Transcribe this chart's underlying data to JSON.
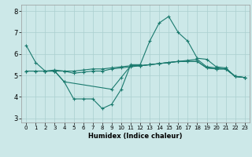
{
  "bg_color": "#cce8e8",
  "grid_color": "#aacfcf",
  "line_color": "#1a7a6e",
  "xlabel": "Humidex (Indice chaleur)",
  "xlim": [
    -0.5,
    23.5
  ],
  "ylim": [
    2.8,
    8.3
  ],
  "yticks": [
    3,
    4,
    5,
    6,
    7,
    8
  ],
  "xticks": [
    0,
    1,
    2,
    3,
    4,
    5,
    6,
    7,
    8,
    9,
    10,
    11,
    12,
    13,
    14,
    15,
    16,
    17,
    18,
    19,
    20,
    21,
    22,
    23
  ],
  "series": [
    {
      "x": [
        0,
        1,
        2,
        3,
        4,
        5,
        6,
        7,
        8,
        9,
        10,
        11,
        12,
        13,
        14,
        15,
        16,
        17,
        18,
        19,
        20,
        21,
        22,
        23
      ],
      "y": [
        6.4,
        5.6,
        5.2,
        5.2,
        4.7,
        3.9,
        3.9,
        3.9,
        3.45,
        3.65,
        4.35,
        5.5,
        5.5,
        6.6,
        7.45,
        7.75,
        7.0,
        6.6,
        5.8,
        5.75,
        5.4,
        5.35,
        4.95,
        4.9
      ]
    },
    {
      "x": [
        0,
        1,
        2,
        3,
        4,
        5,
        6,
        7,
        8,
        9,
        10,
        11,
        12,
        13,
        14,
        15,
        16,
        17,
        18,
        19,
        20,
        21,
        22,
        23
      ],
      "y": [
        5.2,
        5.2,
        5.2,
        5.2,
        5.2,
        5.2,
        5.25,
        5.3,
        5.3,
        5.35,
        5.4,
        5.45,
        5.45,
        5.5,
        5.55,
        5.6,
        5.65,
        5.7,
        5.75,
        5.4,
        5.35,
        5.3,
        4.95,
        4.9
      ]
    },
    {
      "x": [
        0,
        1,
        2,
        3,
        4,
        5,
        6,
        7,
        8,
        9,
        10,
        11,
        12,
        13,
        14,
        15,
        16,
        17,
        18,
        19,
        20,
        21,
        22,
        23
      ],
      "y": [
        5.2,
        5.2,
        5.2,
        5.25,
        5.2,
        5.1,
        5.15,
        5.2,
        5.2,
        5.3,
        5.35,
        5.4,
        5.45,
        5.5,
        5.55,
        5.6,
        5.65,
        5.65,
        5.65,
        5.35,
        5.3,
        5.3,
        4.95,
        4.9
      ]
    },
    {
      "x": [
        2,
        3,
        4,
        9,
        10,
        11,
        12,
        13,
        14,
        15,
        16,
        17,
        18,
        19,
        20,
        21,
        22,
        23
      ],
      "y": [
        5.2,
        5.2,
        4.7,
        4.35,
        4.9,
        5.45,
        5.45,
        5.5,
        5.55,
        5.6,
        5.65,
        5.65,
        5.65,
        5.35,
        5.3,
        5.3,
        4.95,
        4.9
      ]
    }
  ]
}
